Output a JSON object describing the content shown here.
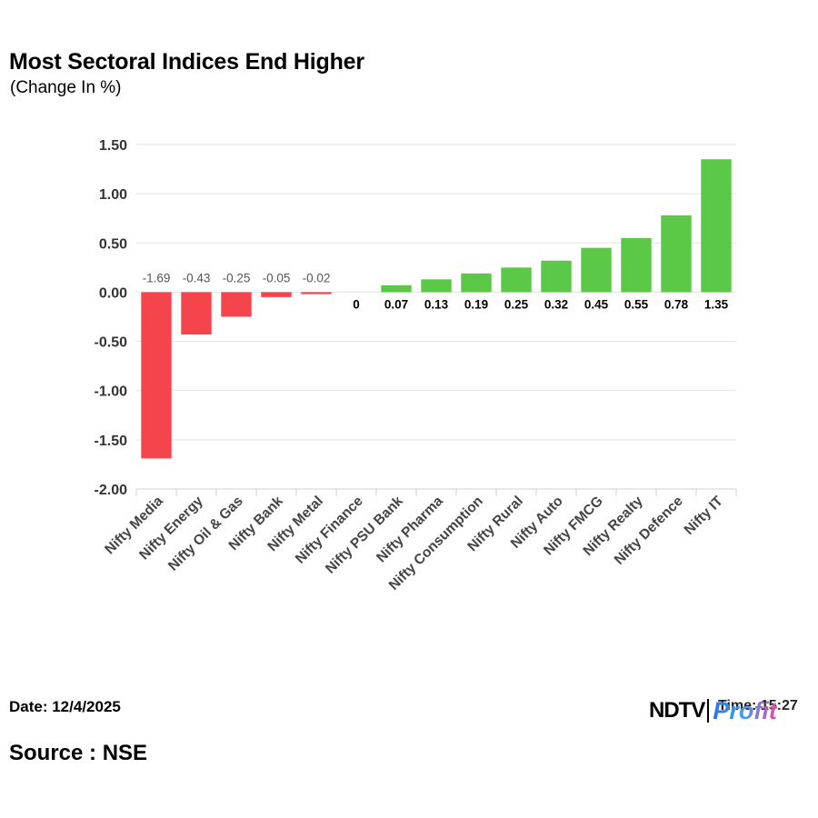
{
  "header": {
    "title": "Most Sectoral Indices End Higher",
    "subtitle": "(Change In %)"
  },
  "footer": {
    "date": "Date: 12/4/2025",
    "source": "Source : NSE",
    "time": "Time: 15:27",
    "logo_text": "NDTV Profit",
    "logo_main": "NDTV",
    "logo_sub": "Profit"
  },
  "colors": {
    "negative": "#f4444c",
    "positive": "#5cc847",
    "grid": "#e3e3e3"
  },
  "chart_data": {
    "type": "bar",
    "title": "Most Sectoral Indices End Higher",
    "subtitle": "(Change In %)",
    "xlabel": "",
    "ylabel": "",
    "ylim": [
      -2.0,
      1.5
    ],
    "yticks": [
      1.5,
      1.0,
      0.5,
      0.0,
      -0.5,
      -1.0,
      -1.5,
      -2.0
    ],
    "ytick_labels": [
      "1.50",
      "1.00",
      "0.50",
      "0.00",
      "-0.50",
      "-1.00",
      "-1.50",
      "-2.00"
    ],
    "grid": true,
    "categories": [
      "Nifty Media",
      "Nifty Energy",
      "Nifty Oil & Gas",
      "Nifty Bank",
      "Nifty Metal",
      "Nifty Finance",
      "Nifty PSU Bank",
      "Nifty Pharma",
      "Nifty Consumption",
      "Nifty Rural",
      "Nifty Auto",
      "Nifty FMCG",
      "Nifty Realty",
      "Nifty Defence",
      "Nifty IT"
    ],
    "values": [
      -1.69,
      -0.43,
      -0.25,
      -0.05,
      -0.02,
      0,
      0.07,
      0.13,
      0.19,
      0.25,
      0.32,
      0.45,
      0.55,
      0.78,
      1.35
    ],
    "value_labels": [
      "-1.69",
      "-0.43",
      "-0.25",
      "-0.05",
      "-0.02",
      "0",
      "0.07",
      "0.13",
      "0.19",
      "0.25",
      "0.32",
      "0.45",
      "0.55",
      "0.78",
      "1.35"
    ]
  }
}
